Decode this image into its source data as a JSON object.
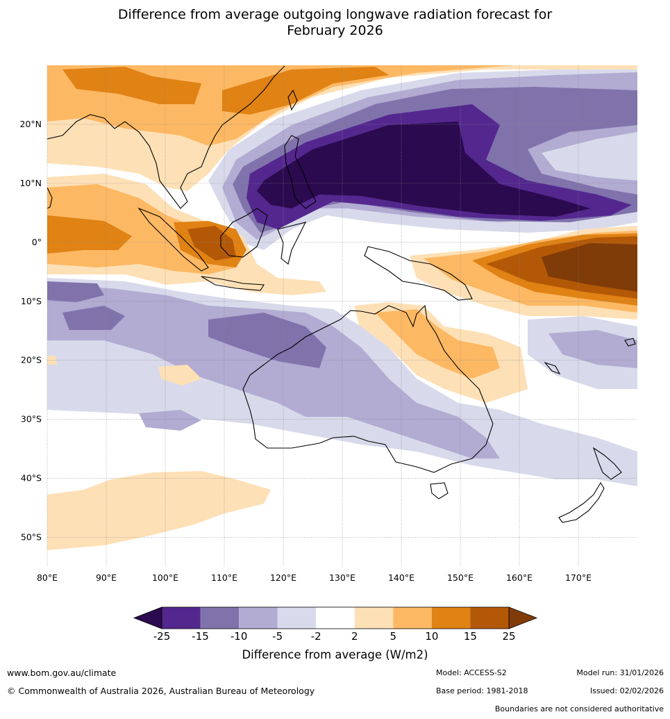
{
  "title": {
    "line1": "Difference from average outgoing longwave radiation forecast for",
    "line2": "February 2026"
  },
  "map": {
    "lat_labels": [
      "20°N",
      "10°N",
      "0°",
      "10°S",
      "20°S",
      "30°S",
      "40°S",
      "50°S"
    ],
    "lon_labels": [
      "80°E",
      "90°E",
      "100°E",
      "110°E",
      "120°E",
      "130°E",
      "140°E",
      "150°E",
      "160°E",
      "170°E"
    ],
    "extent": {
      "lon_min": 80,
      "lon_max": 180,
      "lat_min": -55,
      "lat_max": 30
    }
  },
  "colorbar": {
    "title": "Difference from average (W/m2)",
    "ticks": [
      "-25",
      "-15",
      "-10",
      "-5",
      "-2",
      "2",
      "5",
      "10",
      "15",
      "25"
    ],
    "colors": [
      "#2b0a4f",
      "#54278f",
      "#8073ac",
      "#b2abd2",
      "#d8daeb",
      "#ffffff",
      "#fee0b6",
      "#fdb863",
      "#e08214",
      "#b35806",
      "#7f3b08"
    ]
  },
  "footer": {
    "url": "www.bom.gov.au/climate",
    "copyright": "© Commonwealth of Australia 2026, Australian Bureau of Meteorology",
    "model": "Model: ACCESS-S2",
    "base_period": "Base period: 1981-2018",
    "model_run": "Model run: 31/01/2026",
    "issued": "Issued: 02/02/2026",
    "boundaries": "Boundaries are not considered authoritative"
  }
}
